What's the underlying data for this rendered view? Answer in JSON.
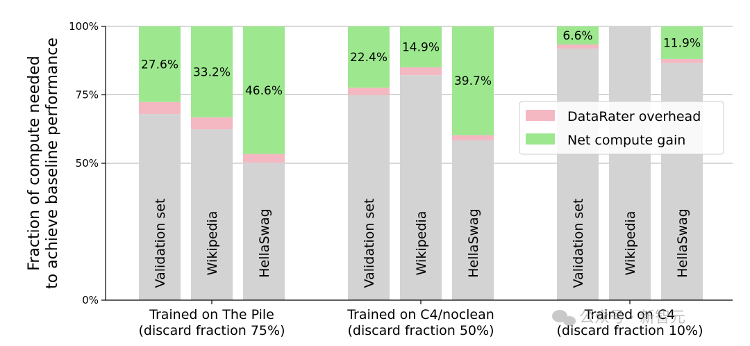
{
  "chart_data": {
    "type": "bar",
    "subtype": "stacked",
    "ylabel_lines": [
      "Fraction of compute needed",
      "to achieve baseline performance"
    ],
    "ylim": [
      0,
      100
    ],
    "yticks": [
      0,
      50,
      75,
      100
    ],
    "ytick_labels": [
      "0%",
      "50%",
      "75%",
      "100%"
    ],
    "grid": "y",
    "legend_position": "right",
    "legend": [
      {
        "name": "DataRater overhead",
        "color": "#f4b8c2"
      },
      {
        "name": "Net compute gain",
        "color": "#9de88f"
      }
    ],
    "colors": {
      "base": "#d3d3d3",
      "overhead": "#f4b8c2",
      "gain": "#9de88f",
      "grid": "#b0b0b0"
    },
    "groups": [
      {
        "label_lines": [
          "Trained on The Pile",
          "(discard fraction 75%)"
        ],
        "bars": [
          {
            "label": "Validation set",
            "base": 68.0,
            "overhead": 4.4,
            "gain": 27.6,
            "gain_label": "27.6%"
          },
          {
            "label": "Wikipedia",
            "base": 62.4,
            "overhead": 4.4,
            "gain": 33.2,
            "gain_label": "33.2%"
          },
          {
            "label": "HellaSwag",
            "base": 50.2,
            "overhead": 3.2,
            "gain": 46.6,
            "gain_label": "46.6%"
          }
        ]
      },
      {
        "label_lines": [
          "Trained on C4/noclean",
          "(discard fraction 50%)"
        ],
        "bars": [
          {
            "label": "Validation set",
            "base": 74.9,
            "overhead": 2.7,
            "gain": 22.4,
            "gain_label": "22.4%"
          },
          {
            "label": "Wikipedia",
            "base": 82.2,
            "overhead": 2.9,
            "gain": 14.9,
            "gain_label": "14.9%"
          },
          {
            "label": "HellaSwag",
            "base": 58.4,
            "overhead": 1.9,
            "gain": 39.7,
            "gain_label": "39.7%"
          }
        ]
      },
      {
        "label_lines": [
          "Trained on C4",
          "(discard fraction 10%)"
        ],
        "bars": [
          {
            "label": "Validation set",
            "base": 91.9,
            "overhead": 1.5,
            "gain": 6.6,
            "gain_label": "6.6%"
          },
          {
            "label": "Wikipedia",
            "base": 100.0,
            "overhead": 0,
            "gain": 0,
            "gain_label": ""
          },
          {
            "label": "HellaSwag",
            "base": 86.6,
            "overhead": 1.5,
            "gain": 11.9,
            "gain_label": "11.9%"
          }
        ]
      }
    ]
  },
  "watermark": {
    "text": "公众号 · 新智元"
  }
}
